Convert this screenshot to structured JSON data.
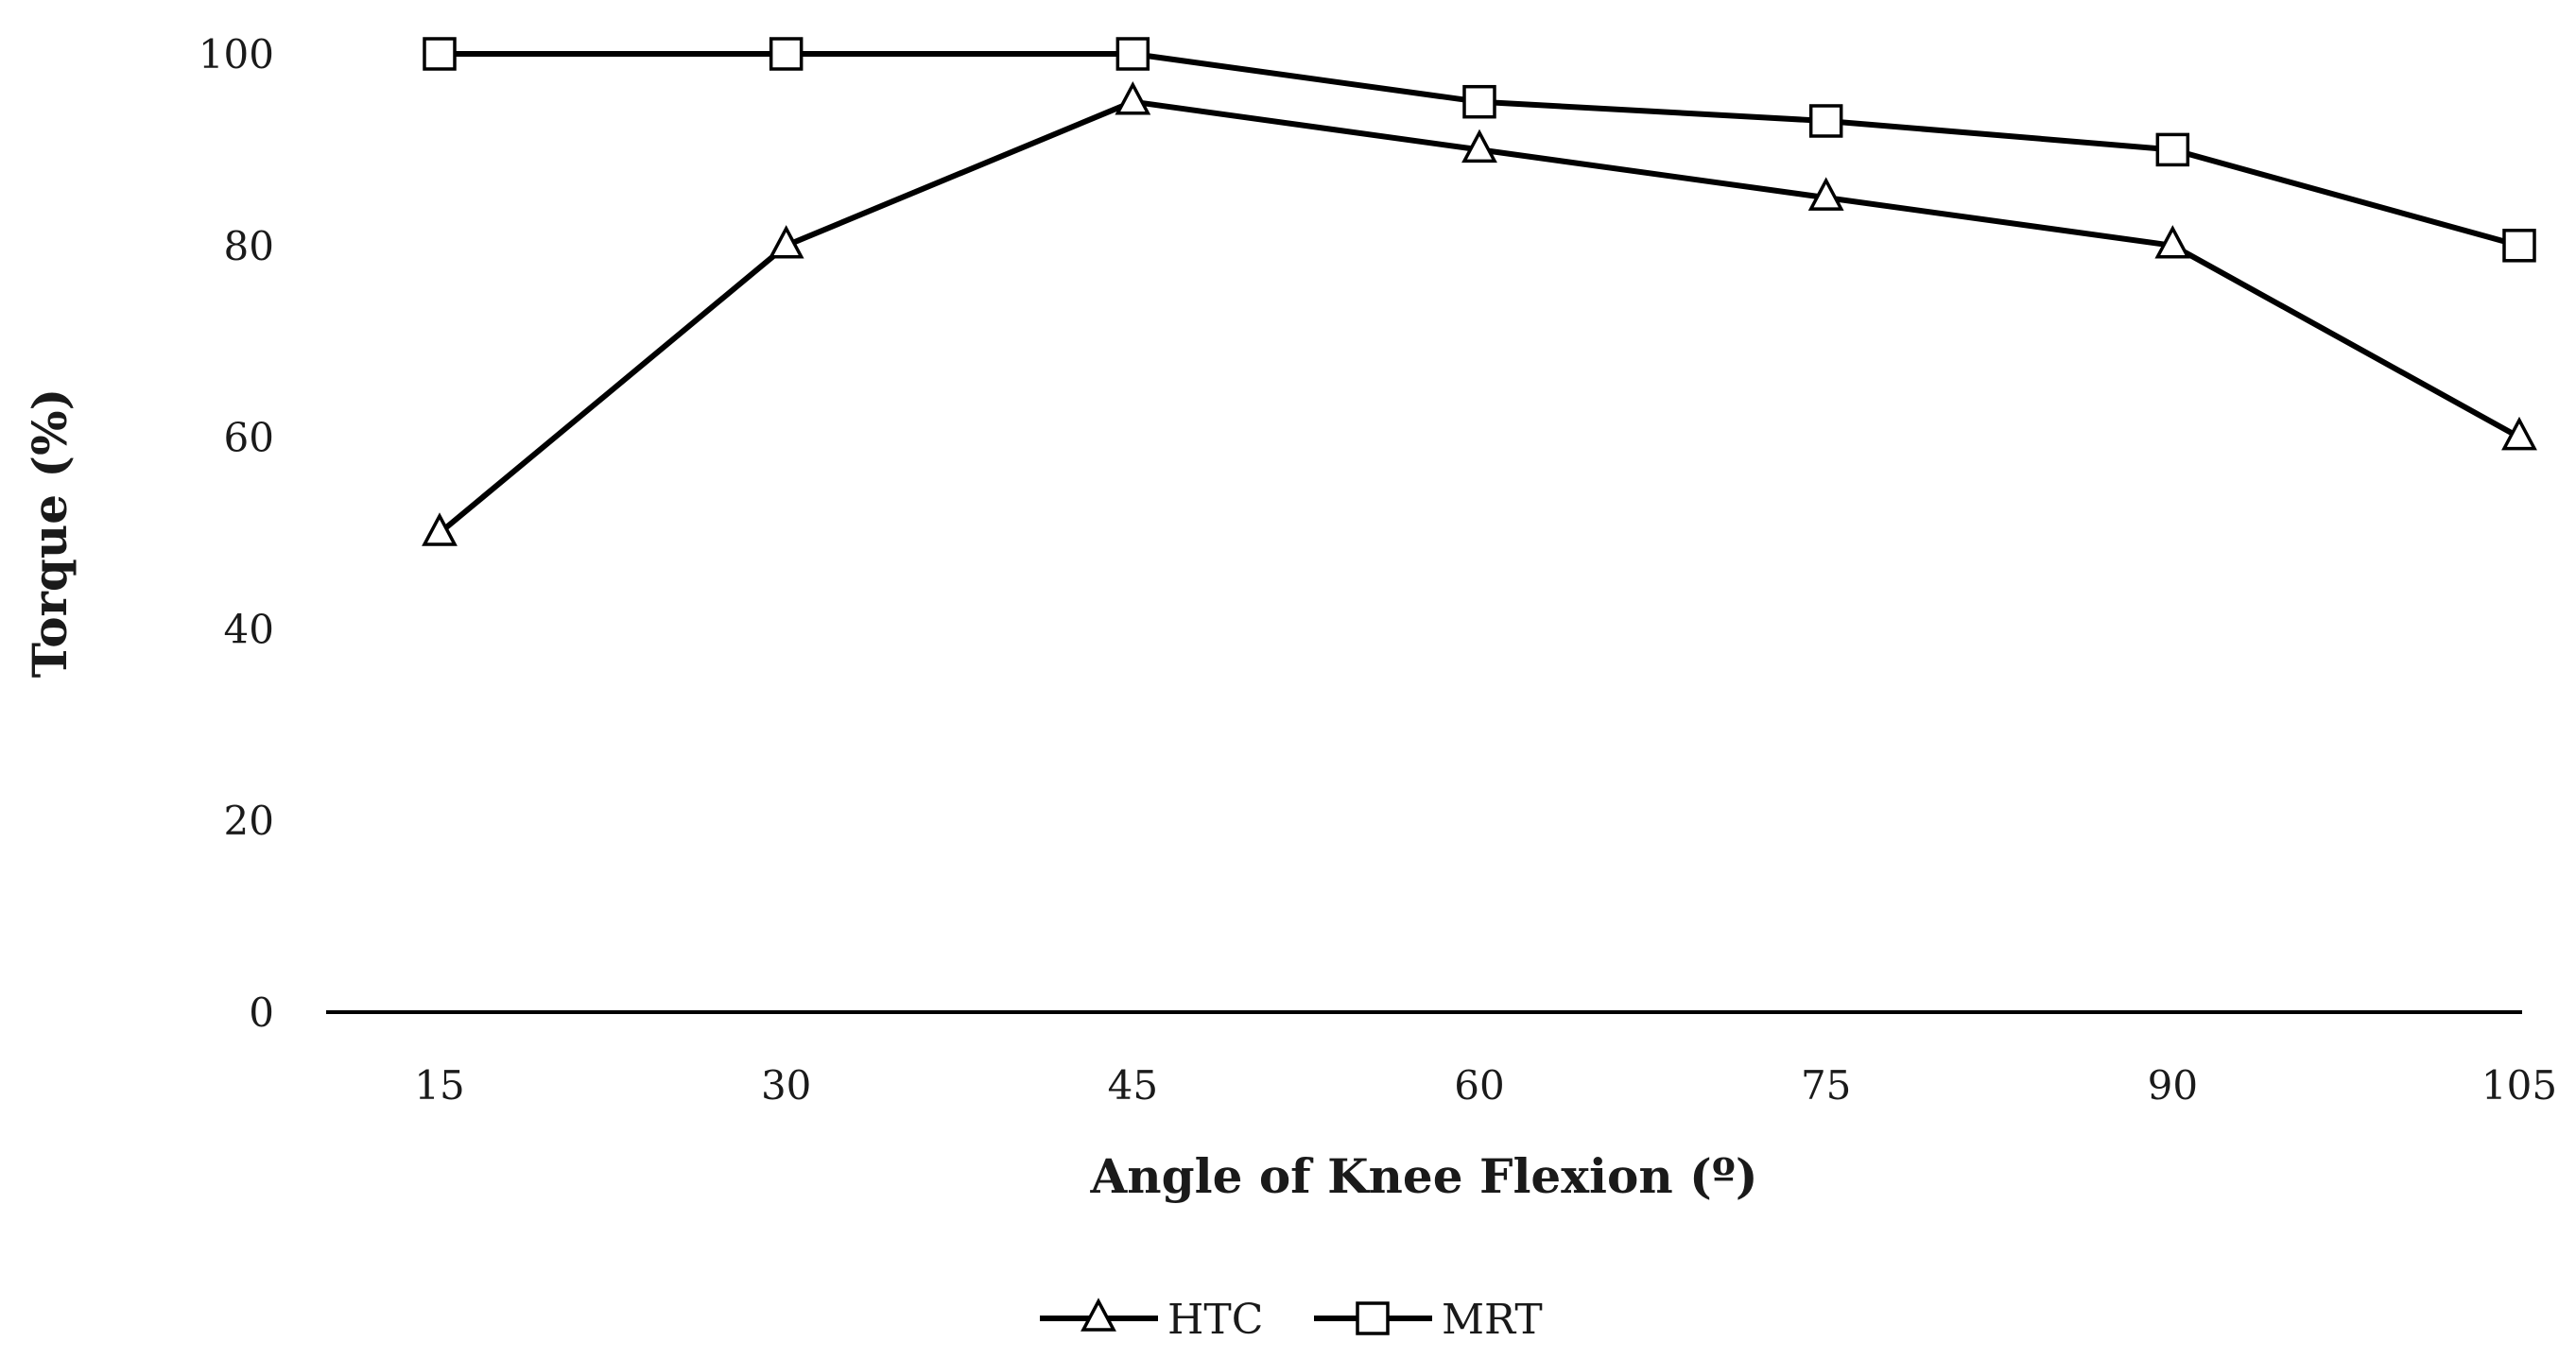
{
  "chart_data": {
    "type": "line",
    "title": "",
    "xlabel": "Angle of Knee Flexion (º)",
    "ylabel": "Torque (%)",
    "categories": [
      "15",
      "30",
      "45",
      "60",
      "75",
      "90",
      "105"
    ],
    "ylim": [
      0,
      100
    ],
    "yticks": [
      "0",
      "20",
      "40",
      "60",
      "80",
      "100"
    ],
    "grid": false,
    "legend_position": "bottom-center",
    "series": [
      {
        "name": "HTC",
        "marker": "triangle",
        "color": "#000000",
        "values": [
          50,
          80,
          95,
          90,
          85,
          80,
          60
        ]
      },
      {
        "name": "MRT",
        "marker": "square",
        "color": "#000000",
        "values": [
          100,
          100,
          100,
          95,
          93,
          90,
          80
        ]
      }
    ]
  }
}
